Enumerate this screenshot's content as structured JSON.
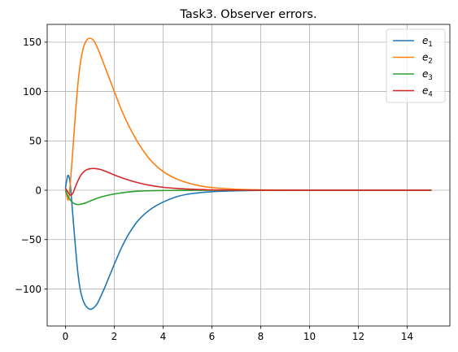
{
  "chart_data": {
    "type": "line",
    "title": "Task3. Observer errors.",
    "xlabel": "",
    "ylabel": "",
    "xlim": [
      -0.75,
      15.75
    ],
    "ylim": [
      -137.5,
      168
    ],
    "xticks": [
      0,
      2,
      4,
      6,
      8,
      10,
      12,
      14
    ],
    "yticks": [
      -100,
      -50,
      0,
      50,
      100,
      150
    ],
    "grid": true,
    "legend_position": "top-right",
    "series": [
      {
        "name": "e1",
        "label_base": "e",
        "label_sub": "1",
        "color": "#1f77b4",
        "x": [
          0,
          0.05,
          0.1,
          0.15,
          0.2,
          0.3,
          0.4,
          0.5,
          0.6,
          0.7,
          0.8,
          0.9,
          1.0,
          1.1,
          1.2,
          1.3,
          1.4,
          1.6,
          1.8,
          2.0,
          2.3,
          2.6,
          3.0,
          3.5,
          4.0,
          4.5,
          5.0,
          5.5,
          6.0,
          7.0,
          8.0,
          9.0,
          10.0,
          12.0,
          15.0
        ],
        "y": [
          2,
          10,
          15,
          13,
          5,
          -25,
          -55,
          -82,
          -100,
          -110,
          -116,
          -119,
          -120.5,
          -120,
          -118,
          -115,
          -110,
          -99,
          -87,
          -75,
          -58,
          -44,
          -30,
          -19,
          -12,
          -7,
          -4,
          -2.5,
          -1.5,
          -0.6,
          -0.2,
          -0.1,
          0,
          0,
          0
        ]
      },
      {
        "name": "e2",
        "label_base": "e",
        "label_sub": "2",
        "color": "#ff7f0e",
        "x": [
          0,
          0.05,
          0.1,
          0.15,
          0.2,
          0.3,
          0.4,
          0.5,
          0.6,
          0.7,
          0.8,
          0.9,
          1.0,
          1.1,
          1.2,
          1.3,
          1.4,
          1.6,
          1.8,
          2.0,
          2.3,
          2.6,
          3.0,
          3.5,
          4.0,
          4.5,
          5.0,
          5.5,
          6.0,
          7.0,
          8.0,
          9.0,
          10.0,
          12.0,
          15.0
        ],
        "y": [
          2,
          -5,
          -10,
          -6,
          8,
          40,
          75,
          105,
          127,
          141,
          149,
          153,
          154,
          153,
          150,
          145,
          139,
          126,
          113,
          100,
          81,
          65,
          47,
          30,
          19,
          12,
          7.5,
          4.5,
          2.7,
          1,
          0.4,
          0.1,
          0,
          0,
          0
        ]
      },
      {
        "name": "e3",
        "label_base": "e",
        "label_sub": "3",
        "color": "#2ca02c",
        "x": [
          0,
          0.1,
          0.2,
          0.3,
          0.4,
          0.5,
          0.6,
          0.8,
          1.0,
          1.2,
          1.5,
          2.0,
          2.5,
          3.0,
          3.5,
          4.0,
          5.0,
          6.0,
          8.0,
          10.0,
          15.0
        ],
        "y": [
          0,
          -6,
          -10,
          -12.5,
          -14,
          -14.5,
          -14.3,
          -13,
          -11,
          -9,
          -6.5,
          -3.8,
          -2,
          -1,
          -0.5,
          -0.3,
          -0.1,
          0,
          0,
          0,
          0
        ]
      },
      {
        "name": "e4",
        "label_base": "e",
        "label_sub": "4",
        "color": "#d62728",
        "x": [
          0,
          0.1,
          0.2,
          0.3,
          0.4,
          0.5,
          0.6,
          0.7,
          0.8,
          0.9,
          1.0,
          1.2,
          1.4,
          1.6,
          1.8,
          2.0,
          2.5,
          3.0,
          3.5,
          4.0,
          4.5,
          5.0,
          6.0,
          7.0,
          8.0,
          10.0,
          15.0
        ],
        "y": [
          2,
          -2,
          -5,
          -3,
          3,
          9,
          14,
          17.5,
          19.8,
          21,
          21.8,
          22,
          21.2,
          19.6,
          17.6,
          15.5,
          11,
          7.4,
          4.8,
          3,
          1.9,
          1.2,
          0.4,
          0.2,
          0,
          0,
          0
        ]
      }
    ]
  }
}
